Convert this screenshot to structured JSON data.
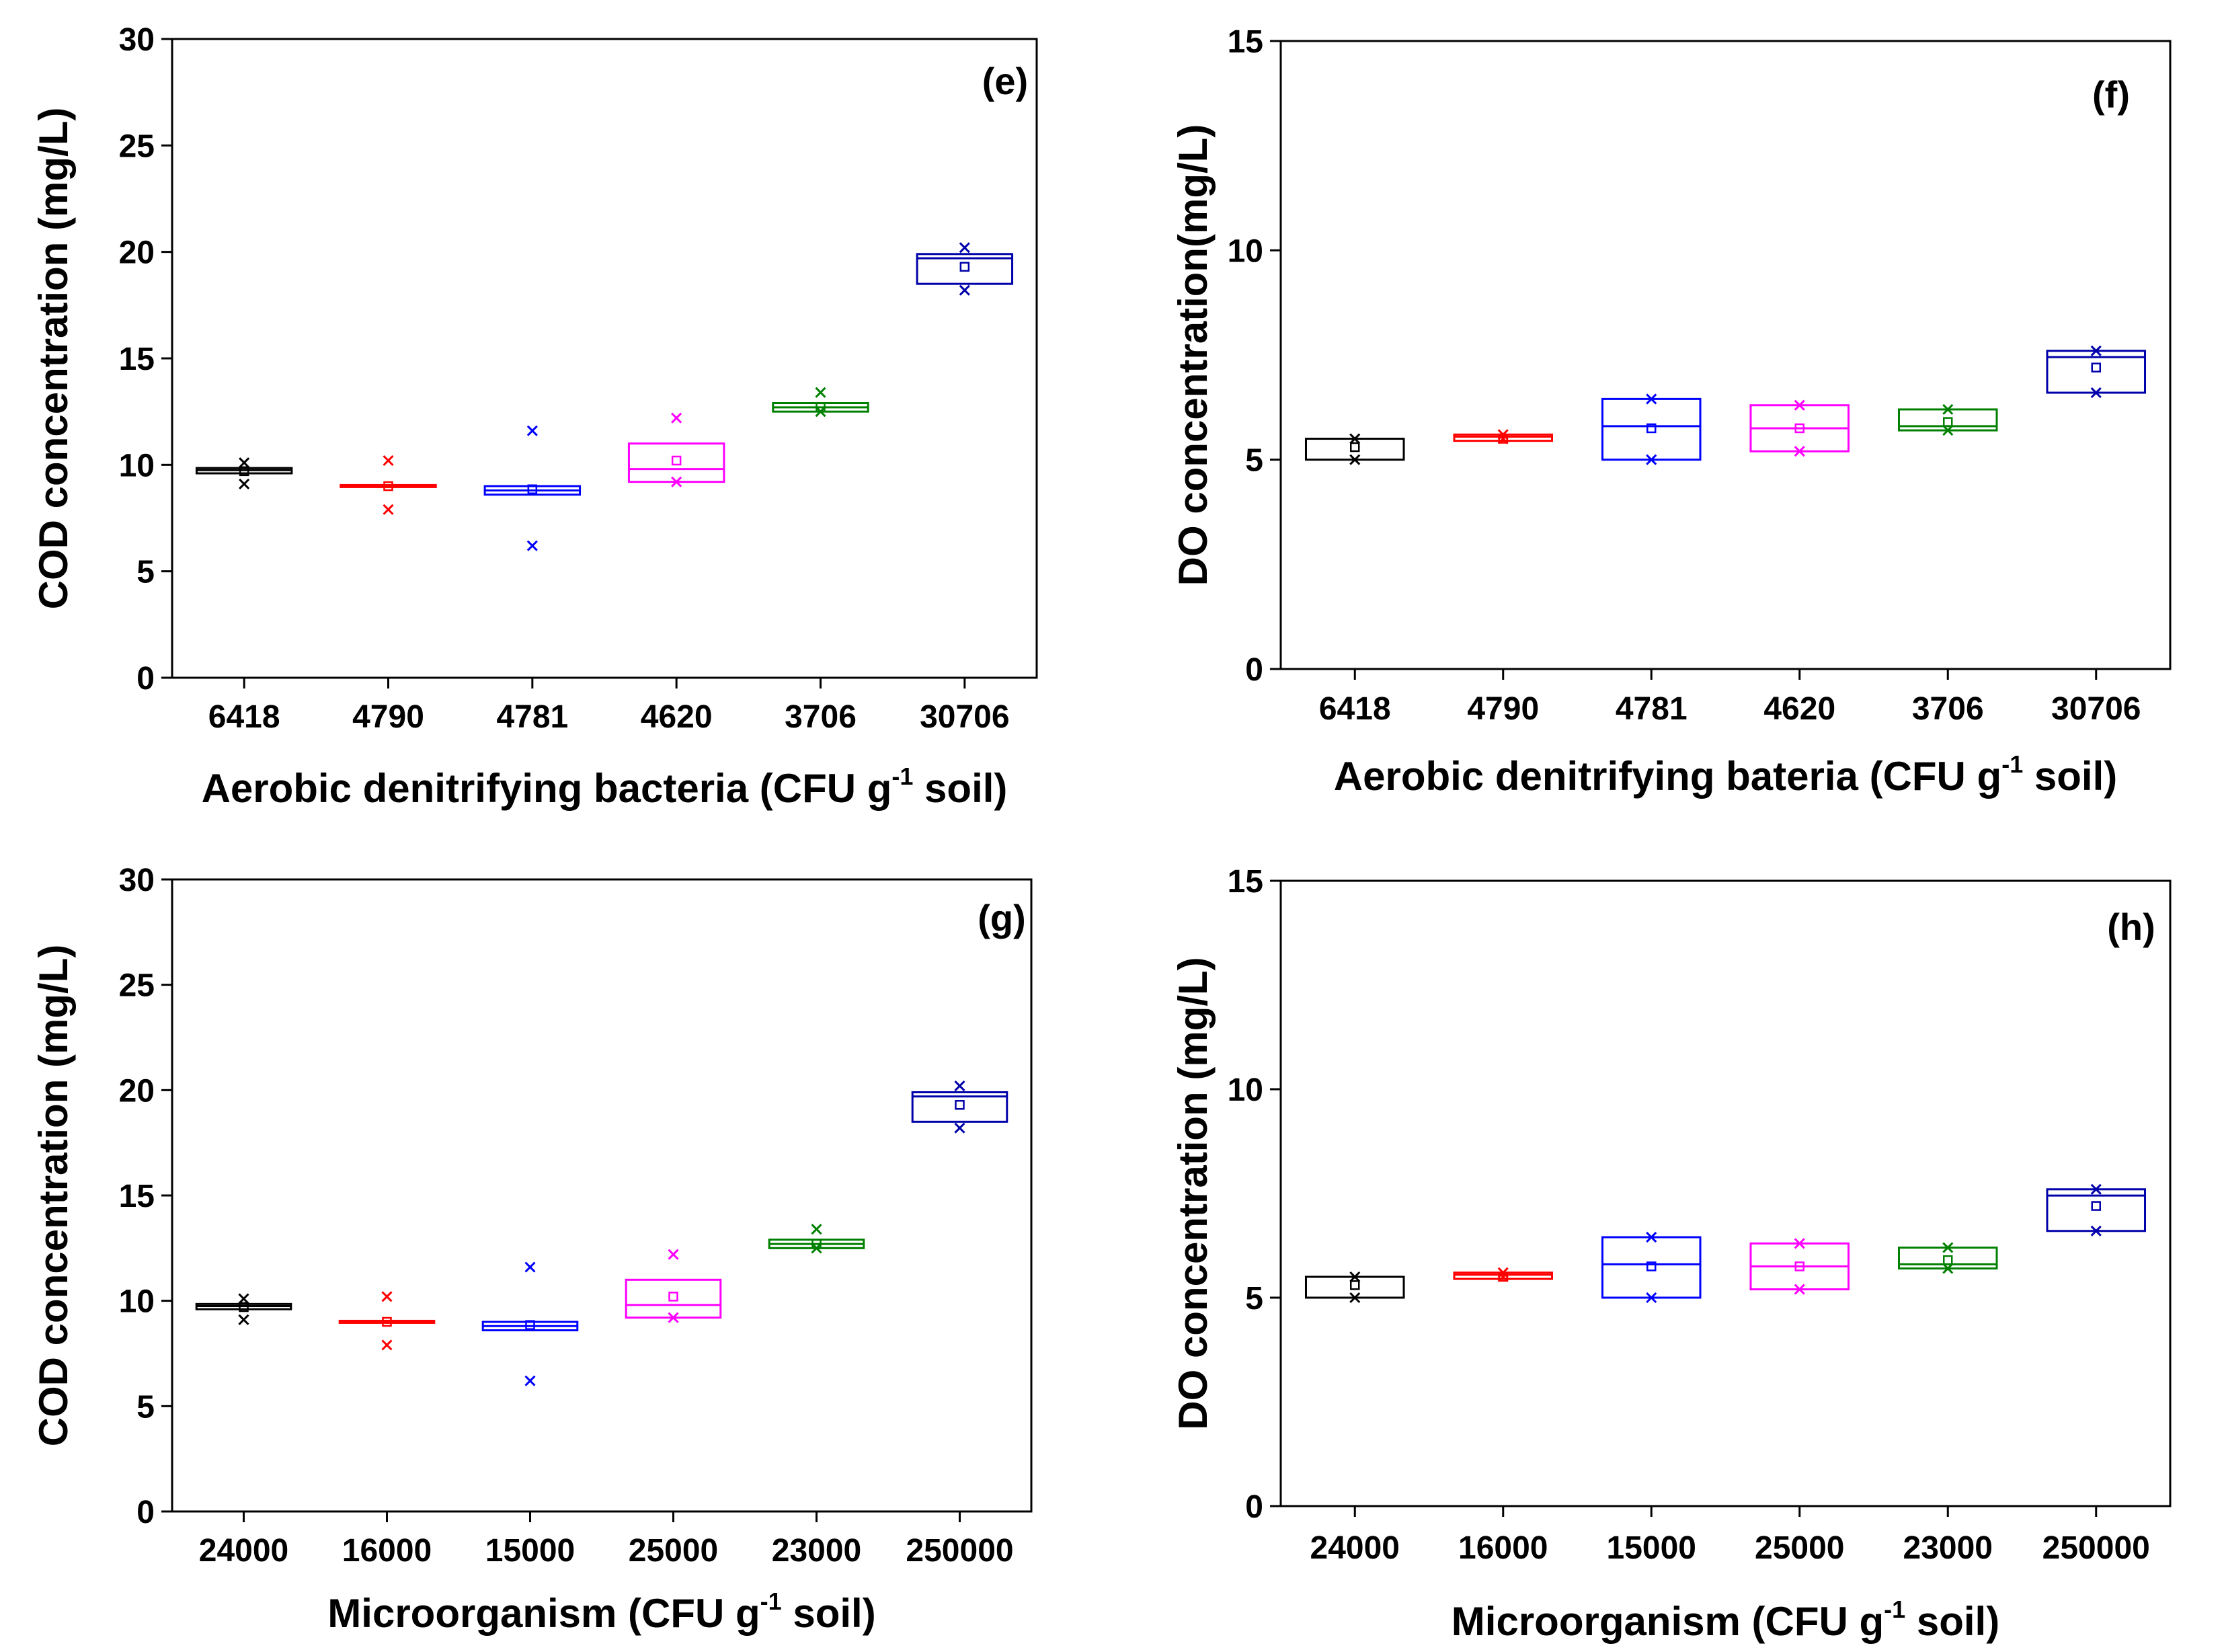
{
  "chart_data": [
    {
      "type": "box",
      "panel_label": "(e)",
      "ylabel": "COD concentration (mg/L)",
      "xlabel_main": "Aerobic denitrifying bacteria (CFU g",
      "xlabel_sup": "-1",
      "xlabel_tail": " soil)",
      "ylim": [
        0,
        30
      ],
      "yticks": [
        "0",
        "5",
        "10",
        "15",
        "20",
        "25",
        "30"
      ],
      "categories": [
        "6418",
        "4790",
        "4781",
        "4620",
        "3706",
        "30706"
      ],
      "colors": [
        "#000000",
        "#ff0000",
        "#0000ff",
        "#ff00ff",
        "#008000",
        "#0000aa"
      ],
      "boxes": [
        {
          "q1": 9.6,
          "median": 9.75,
          "q3": 9.85,
          "mean": 9.7,
          "outliers": [
            10.1,
            9.1
          ]
        },
        {
          "q1": 9.0,
          "median": 9.0,
          "q3": 9.05,
          "mean": 9.0,
          "outliers": [
            10.2,
            7.9
          ]
        },
        {
          "q1": 8.6,
          "median": 8.8,
          "q3": 9.0,
          "mean": 8.85,
          "outliers": [
            11.6,
            6.2
          ]
        },
        {
          "q1": 9.2,
          "median": 9.8,
          "q3": 11.0,
          "mean": 10.2,
          "outliers": [
            12.2,
            9.2
          ]
        },
        {
          "q1": 12.5,
          "median": 12.7,
          "q3": 12.9,
          "mean": 12.7,
          "outliers": [
            13.4,
            12.5
          ]
        },
        {
          "q1": 18.5,
          "median": 19.7,
          "q3": 19.9,
          "mean": 19.3,
          "outliers": [
            20.2,
            18.2
          ]
        }
      ]
    },
    {
      "type": "box",
      "panel_label": "(f)",
      "ylabel": "DO concentration(mg/L)",
      "xlabel_main": "Aerobic denitrifying bateria (CFU g",
      "xlabel_sup": "-1",
      "xlabel_tail": " soil)",
      "ylim": [
        0,
        15
      ],
      "yticks": [
        "0",
        "5",
        "10",
        "15"
      ],
      "categories": [
        "6418",
        "4790",
        "4781",
        "4620",
        "3706",
        "30706"
      ],
      "colors": [
        "#000000",
        "#ff0000",
        "#0000ff",
        "#ff00ff",
        "#008000",
        "#0000aa"
      ],
      "boxes": [
        {
          "q1": 5.0,
          "median": 5.5,
          "q3": 5.5,
          "mean": 5.3,
          "outliers": [
            5.5,
            5.0
          ]
        },
        {
          "q1": 5.45,
          "median": 5.55,
          "q3": 5.6,
          "mean": 5.5,
          "outliers": [
            5.6,
            5.5
          ]
        },
        {
          "q1": 5.0,
          "median": 5.8,
          "q3": 6.45,
          "mean": 5.75,
          "outliers": [
            6.45,
            5.0
          ]
        },
        {
          "q1": 5.2,
          "median": 5.75,
          "q3": 6.3,
          "mean": 5.75,
          "outliers": [
            6.3,
            5.2
          ]
        },
        {
          "q1": 5.7,
          "median": 5.8,
          "q3": 6.2,
          "mean": 5.9,
          "outliers": [
            6.2,
            5.7
          ]
        },
        {
          "q1": 6.6,
          "median": 7.45,
          "q3": 7.6,
          "mean": 7.2,
          "outliers": [
            7.6,
            6.6
          ]
        }
      ]
    },
    {
      "type": "box",
      "panel_label": "(g)",
      "ylabel": "COD concentration (mg/L)",
      "xlabel_main": "Microorganism (CFU g",
      "xlabel_sup": "-1",
      "xlabel_tail": " soil)",
      "ylim": [
        0,
        30
      ],
      "yticks": [
        "0",
        "5",
        "10",
        "15",
        "20",
        "25",
        "30"
      ],
      "categories": [
        "24000",
        "16000",
        "15000",
        "25000",
        "23000",
        "250000"
      ],
      "colors": [
        "#000000",
        "#ff0000",
        "#0000ff",
        "#ff00ff",
        "#008000",
        "#0000aa"
      ],
      "boxes": [
        {
          "q1": 9.6,
          "median": 9.75,
          "q3": 9.85,
          "mean": 9.7,
          "outliers": [
            10.1,
            9.1
          ]
        },
        {
          "q1": 9.0,
          "median": 9.0,
          "q3": 9.05,
          "mean": 9.0,
          "outliers": [
            10.2,
            7.9
          ]
        },
        {
          "q1": 8.6,
          "median": 8.8,
          "q3": 9.0,
          "mean": 8.85,
          "outliers": [
            11.6,
            6.2
          ]
        },
        {
          "q1": 9.2,
          "median": 9.8,
          "q3": 11.0,
          "mean": 10.2,
          "outliers": [
            12.2,
            9.2
          ]
        },
        {
          "q1": 12.5,
          "median": 12.7,
          "q3": 12.9,
          "mean": 12.7,
          "outliers": [
            13.4,
            12.5
          ]
        },
        {
          "q1": 18.5,
          "median": 19.7,
          "q3": 19.9,
          "mean": 19.3,
          "outliers": [
            20.2,
            18.2
          ]
        }
      ]
    },
    {
      "type": "box",
      "panel_label": "(h)",
      "ylabel": "DO concentration (mg/L)",
      "xlabel_main": "Microorganism (CFU g",
      "xlabel_sup": "-1",
      "xlabel_tail": " soil)",
      "ylim": [
        0,
        15
      ],
      "yticks": [
        "0",
        "5",
        "10",
        "15"
      ],
      "categories": [
        "24000",
        "16000",
        "15000",
        "25000",
        "23000",
        "250000"
      ],
      "colors": [
        "#000000",
        "#ff0000",
        "#0000ff",
        "#ff00ff",
        "#008000",
        "#0000aa"
      ],
      "boxes": [
        {
          "q1": 5.0,
          "median": 5.5,
          "q3": 5.5,
          "mean": 5.3,
          "outliers": [
            5.5,
            5.0
          ]
        },
        {
          "q1": 5.45,
          "median": 5.55,
          "q3": 5.6,
          "mean": 5.5,
          "outliers": [
            5.6,
            5.5
          ]
        },
        {
          "q1": 5.0,
          "median": 5.8,
          "q3": 6.45,
          "mean": 5.75,
          "outliers": [
            6.45,
            5.0
          ]
        },
        {
          "q1": 5.2,
          "median": 5.75,
          "q3": 6.3,
          "mean": 5.75,
          "outliers": [
            6.3,
            5.2
          ]
        },
        {
          "q1": 5.7,
          "median": 5.8,
          "q3": 6.2,
          "mean": 5.9,
          "outliers": [
            6.2,
            5.7
          ]
        },
        {
          "q1": 6.6,
          "median": 7.45,
          "q3": 7.6,
          "mean": 7.2,
          "outliers": [
            7.6,
            6.6
          ]
        }
      ]
    }
  ]
}
